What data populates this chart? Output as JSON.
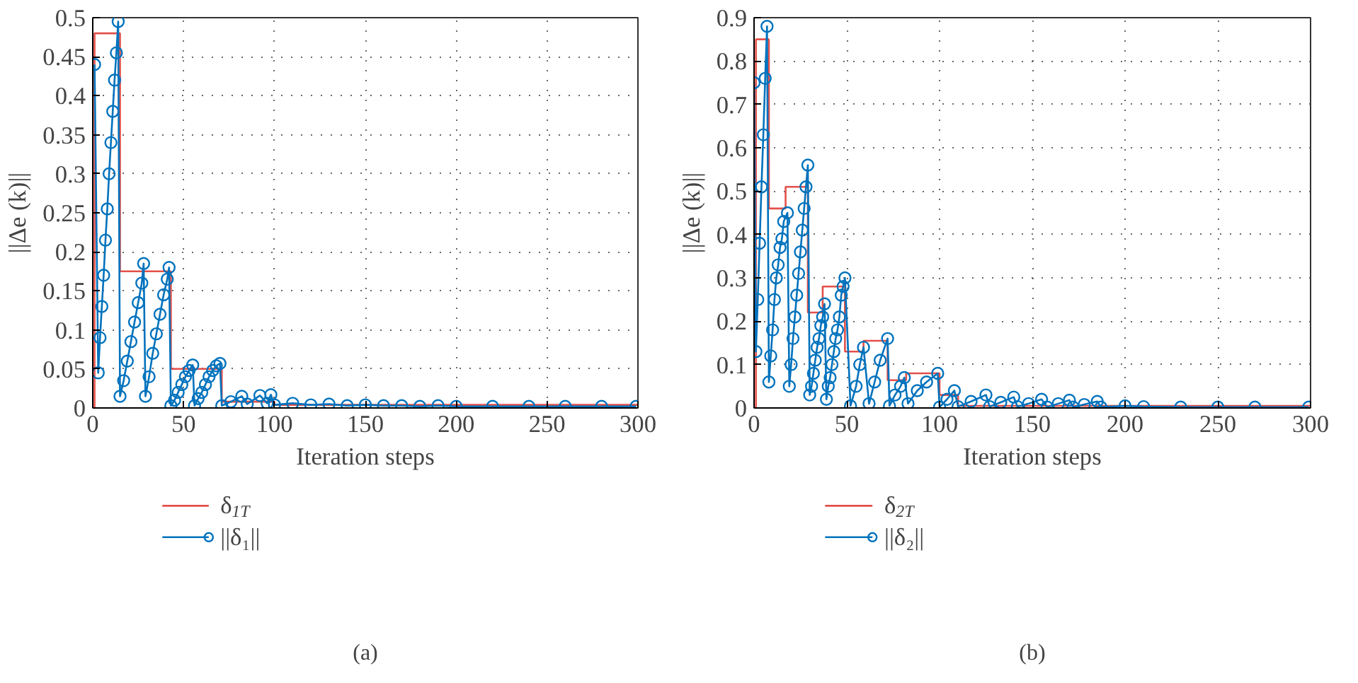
{
  "chart_data": [
    {
      "type": "line",
      "xlabel": "Iteration steps",
      "ylabel": "||Δe (k)||",
      "xlim": [
        0,
        300
      ],
      "xticks": [
        0,
        50,
        100,
        150,
        200,
        250,
        300
      ],
      "ylim": [
        0,
        0.5
      ],
      "yticks": [
        0,
        0.05,
        0.1,
        0.15,
        0.2,
        0.25,
        0.3,
        0.35,
        0.4,
        0.45,
        0.5
      ],
      "grid": true,
      "legend": "bottom",
      "annotations": [
        "(a)"
      ],
      "series": [
        {
          "name": "δ$_{1T}$",
          "type": "step",
          "marker": "none",
          "color": "#e3504a",
          "x": [
            0,
            1,
            15,
            43,
            71,
            100,
            300
          ],
          "values": [
            0,
            0.48,
            0.175,
            0.05,
            0.008,
            0.004,
            0.004
          ]
        },
        {
          "name": "||δ₁||",
          "type": "line",
          "marker": "circle",
          "color": "#0072bd",
          "x": [
            1,
            3,
            4,
            5,
            6,
            7,
            8,
            9,
            10,
            11,
            12,
            13,
            14,
            15,
            17,
            19,
            21,
            23,
            25,
            27,
            28,
            29,
            31,
            33,
            35,
            37,
            39,
            41,
            42,
            43,
            45,
            47,
            49,
            51,
            53,
            55,
            56,
            58,
            60,
            62,
            64,
            66,
            68,
            70,
            71,
            76,
            82,
            85,
            92,
            96,
            98,
            100,
            110,
            120,
            130,
            140,
            150,
            160,
            170,
            180,
            190,
            200,
            220,
            240,
            260,
            280,
            299
          ],
          "values": [
            0.44,
            0.045,
            0.09,
            0.13,
            0.17,
            0.215,
            0.255,
            0.3,
            0.34,
            0.38,
            0.42,
            0.455,
            0.495,
            0.015,
            0.035,
            0.06,
            0.085,
            0.11,
            0.135,
            0.16,
            0.185,
            0.015,
            0.04,
            0.07,
            0.095,
            0.12,
            0.145,
            0.165,
            0.18,
            0.003,
            0.01,
            0.02,
            0.03,
            0.04,
            0.048,
            0.055,
            0.003,
            0.012,
            0.02,
            0.03,
            0.04,
            0.048,
            0.054,
            0.057,
            0.003,
            0.008,
            0.015,
            0.005,
            0.016,
            0.006,
            0.017,
            0.004,
            0.006,
            0.004,
            0.005,
            0.003,
            0.004,
            0.003,
            0.003,
            0.002,
            0.003,
            0.002,
            0.002,
            0.002,
            0.002,
            0.002,
            0.002
          ]
        }
      ]
    },
    {
      "type": "line",
      "xlabel": "Iteration steps",
      "ylabel": "||Δe (k)||",
      "xlim": [
        0,
        300
      ],
      "xticks": [
        0,
        50,
        100,
        150,
        200,
        250,
        300
      ],
      "ylim": [
        0,
        0.9
      ],
      "yticks": [
        0,
        0.1,
        0.2,
        0.3,
        0.4,
        0.5,
        0.6,
        0.7,
        0.8,
        0.9
      ],
      "grid": true,
      "legend": "bottom",
      "annotations": [
        "(b)"
      ],
      "series": [
        {
          "name": "δ$_{2T}$",
          "type": "step",
          "marker": "none",
          "color": "#e3504a",
          "x": [
            0,
            1,
            8,
            17,
            29,
            37,
            49,
            59,
            72,
            82,
            100,
            110,
            300
          ],
          "values": [
            0,
            0.85,
            0.46,
            0.51,
            0.22,
            0.28,
            0.13,
            0.155,
            0.064,
            0.08,
            0.03,
            0.005,
            0.005
          ]
        },
        {
          "name": "||δ₂||",
          "type": "line",
          "marker": "circle",
          "color": "#0072bd",
          "x": [
            0,
            1,
            2,
            3,
            4,
            5,
            6,
            7,
            8,
            9,
            10,
            11,
            12,
            13,
            14,
            15,
            16,
            18,
            19,
            20,
            21,
            22,
            23,
            24,
            25,
            26,
            27,
            28,
            29,
            30,
            31,
            32,
            33,
            34,
            35,
            36,
            37,
            38,
            39,
            40,
            41,
            42,
            43,
            44,
            45,
            46,
            47,
            48,
            49,
            52,
            55,
            57,
            59,
            62,
            65,
            68,
            72,
            73,
            76,
            79,
            81,
            83,
            88,
            93,
            99,
            100,
            104,
            108,
            110,
            117,
            125,
            127,
            133,
            140,
            142,
            148,
            155,
            158,
            164,
            170,
            172,
            178,
            185,
            187,
            200,
            210,
            230,
            250,
            270,
            299
          ],
          "values": [
            0.75,
            0.13,
            0.25,
            0.38,
            0.51,
            0.63,
            0.76,
            0.88,
            0.06,
            0.12,
            0.18,
            0.25,
            0.3,
            0.33,
            0.37,
            0.39,
            0.43,
            0.45,
            0.05,
            0.1,
            0.16,
            0.21,
            0.26,
            0.31,
            0.36,
            0.41,
            0.46,
            0.51,
            0.56,
            0.03,
            0.05,
            0.08,
            0.11,
            0.14,
            0.16,
            0.19,
            0.21,
            0.24,
            0.02,
            0.05,
            0.07,
            0.1,
            0.13,
            0.16,
            0.18,
            0.21,
            0.26,
            0.28,
            0.3,
            0.005,
            0.05,
            0.1,
            0.14,
            0.01,
            0.06,
            0.11,
            0.16,
            0.005,
            0.03,
            0.05,
            0.07,
            0.01,
            0.04,
            0.06,
            0.08,
            0.002,
            0.02,
            0.04,
            0.003,
            0.015,
            0.03,
            0.003,
            0.013,
            0.025,
            0.003,
            0.01,
            0.02,
            0.002,
            0.01,
            0.018,
            0.002,
            0.008,
            0.015,
            0.002,
            0.005,
            0.003,
            0.002,
            0.002,
            0.002,
            0.002
          ]
        }
      ]
    }
  ]
}
